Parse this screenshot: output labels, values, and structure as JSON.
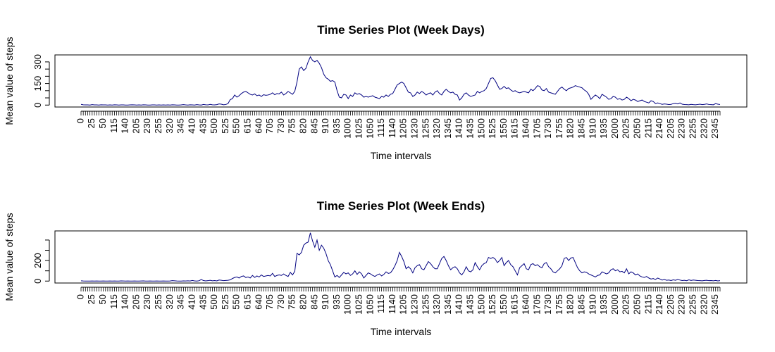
{
  "chart_data": [
    {
      "type": "line",
      "title": "Time Series Plot (Week Days)",
      "x_label": "Time intervals",
      "y_label": "Mean value of steps",
      "color": "#000080",
      "categories": [
        "0",
        null,
        null,
        null,
        null,
        "25",
        null,
        null,
        null,
        null,
        "50",
        null,
        null,
        null,
        null,
        "115",
        null,
        null,
        null,
        null,
        "140",
        null,
        null,
        null,
        null,
        "205",
        null,
        null,
        null,
        null,
        "230",
        null,
        null,
        null,
        null,
        "255",
        null,
        null,
        null,
        null,
        "320",
        null,
        null,
        null,
        null,
        "345",
        null,
        null,
        null,
        null,
        "410",
        null,
        null,
        null,
        null,
        "435",
        null,
        null,
        null,
        null,
        "500",
        null,
        null,
        null,
        null,
        "525",
        null,
        null,
        null,
        null,
        "550",
        null,
        null,
        null,
        null,
        "615",
        null,
        null,
        null,
        null,
        "640",
        null,
        null,
        null,
        null,
        "705",
        null,
        null,
        null,
        null,
        "730",
        null,
        null,
        null,
        null,
        "755",
        null,
        null,
        null,
        null,
        "820",
        null,
        null,
        null,
        null,
        "845",
        null,
        null,
        null,
        null,
        "910",
        null,
        null,
        null,
        null,
        "935",
        null,
        null,
        null,
        null,
        "1000",
        null,
        null,
        null,
        null,
        "1025",
        null,
        null,
        null,
        null,
        "1050",
        null,
        null,
        null,
        null,
        "1115",
        null,
        null,
        null,
        null,
        "1140",
        null,
        null,
        null,
        null,
        "1205",
        null,
        null,
        null,
        null,
        "1230",
        null,
        null,
        null,
        null,
        "1255",
        null,
        null,
        null,
        null,
        "1320",
        null,
        null,
        null,
        null,
        "1345",
        null,
        null,
        null,
        null,
        "1410",
        null,
        null,
        null,
        null,
        "1435",
        null,
        null,
        null,
        null,
        "1500",
        null,
        null,
        null,
        null,
        "1525",
        null,
        null,
        null,
        null,
        "1550",
        null,
        null,
        null,
        null,
        "1615",
        null,
        null,
        null,
        null,
        "1640",
        null,
        null,
        null,
        null,
        "1705",
        null,
        null,
        null,
        null,
        "1730",
        null,
        null,
        null,
        null,
        "1755",
        null,
        null,
        null,
        null,
        "1820",
        null,
        null,
        null,
        null,
        "1845",
        null,
        null,
        null,
        null,
        "1910",
        null,
        null,
        null,
        null,
        "1935",
        null,
        null,
        null,
        null,
        "2000",
        null,
        null,
        null,
        null,
        "2025",
        null,
        null,
        null,
        null,
        "2050",
        null,
        null,
        null,
        null,
        "2115",
        null,
        null,
        null,
        null,
        "2140",
        null,
        null,
        null,
        null,
        "2205",
        null,
        null,
        null,
        null,
        "2230",
        null,
        null,
        null,
        null,
        "2255",
        null,
        null,
        null,
        null,
        "2320",
        null,
        null,
        null,
        null,
        "2345",
        null,
        null
      ],
      "values": [
        5,
        2,
        1,
        1,
        0,
        3,
        1,
        1,
        0,
        2,
        1,
        1,
        0,
        1,
        0,
        2,
        1,
        0,
        1,
        1,
        0,
        0,
        1,
        2,
        1,
        0,
        1,
        0,
        2,
        1,
        0,
        0,
        1,
        1,
        0,
        1,
        0,
        1,
        0,
        1,
        0,
        2,
        1,
        0,
        0,
        1,
        3,
        1,
        0,
        2,
        1,
        0,
        3,
        1,
        0,
        4,
        2,
        1,
        5,
        2,
        1,
        3,
        8,
        6,
        2,
        4,
        10,
        38,
        45,
        70,
        55,
        65,
        80,
        90,
        95,
        85,
        75,
        70,
        78,
        65,
        70,
        60,
        72,
        68,
        70,
        75,
        85,
        72,
        80,
        78,
        90,
        70,
        80,
        95,
        85,
        75,
        95,
        160,
        250,
        265,
        240,
        255,
        300,
        335,
        310,
        300,
        310,
        290,
        260,
        215,
        190,
        180,
        165,
        170,
        160,
        100,
        55,
        50,
        75,
        70,
        45,
        70,
        60,
        85,
        75,
        80,
        70,
        55,
        60,
        55,
        60,
        65,
        55,
        50,
        45,
        60,
        55,
        70,
        60,
        75,
        80,
        110,
        140,
        150,
        160,
        150,
        120,
        90,
        85,
        60,
        70,
        90,
        80,
        95,
        85,
        70,
        80,
        85,
        70,
        90,
        100,
        80,
        70,
        95,
        110,
        95,
        85,
        90,
        75,
        70,
        35,
        50,
        75,
        85,
        70,
        60,
        65,
        70,
        95,
        85,
        95,
        100,
        115,
        150,
        185,
        190,
        170,
        140,
        110,
        115,
        130,
        115,
        120,
        105,
        95,
        100,
        90,
        85,
        90,
        95,
        90,
        85,
        110,
        100,
        115,
        135,
        130,
        105,
        100,
        115,
        90,
        85,
        80,
        75,
        95,
        115,
        125,
        110,
        100,
        115,
        120,
        125,
        135,
        130,
        125,
        120,
        105,
        95,
        75,
        40,
        55,
        70,
        60,
        45,
        75,
        65,
        55,
        40,
        45,
        60,
        55,
        40,
        45,
        35,
        40,
        55,
        45,
        30,
        40,
        35,
        25,
        30,
        35,
        25,
        20,
        15,
        30,
        25,
        10,
        15,
        10,
        5,
        8,
        6,
        4,
        5,
        10,
        12,
        8,
        15,
        6,
        4,
        3,
        2,
        5,
        3,
        2,
        4,
        6,
        3,
        5,
        8,
        4,
        3,
        2,
        10,
        6,
        4
      ],
      "ylim": [
        -13.4,
        348.4
      ],
      "yticks": [
        0,
        50,
        100,
        150,
        200,
        250,
        300
      ]
    },
    {
      "type": "line",
      "title": "Time Series Plot (Week Ends)",
      "x_label": "Time intervals",
      "y_label": "Mean value of steps",
      "color": "#000080",
      "categories": [
        "0",
        null,
        null,
        null,
        null,
        "25",
        null,
        null,
        null,
        null,
        "50",
        null,
        null,
        null,
        null,
        "115",
        null,
        null,
        null,
        null,
        "140",
        null,
        null,
        null,
        null,
        "205",
        null,
        null,
        null,
        null,
        "230",
        null,
        null,
        null,
        null,
        "255",
        null,
        null,
        null,
        null,
        "320",
        null,
        null,
        null,
        null,
        "345",
        null,
        null,
        null,
        null,
        "410",
        null,
        null,
        null,
        null,
        "435",
        null,
        null,
        null,
        null,
        "500",
        null,
        null,
        null,
        null,
        "525",
        null,
        null,
        null,
        null,
        "550",
        null,
        null,
        null,
        null,
        "615",
        null,
        null,
        null,
        null,
        "640",
        null,
        null,
        null,
        null,
        "705",
        null,
        null,
        null,
        null,
        "730",
        null,
        null,
        null,
        null,
        "755",
        null,
        null,
        null,
        null,
        "820",
        null,
        null,
        null,
        null,
        "845",
        null,
        null,
        null,
        null,
        "910",
        null,
        null,
        null,
        null,
        "935",
        null,
        null,
        null,
        null,
        "1000",
        null,
        null,
        null,
        null,
        "1025",
        null,
        null,
        null,
        null,
        "1050",
        null,
        null,
        null,
        null,
        "1115",
        null,
        null,
        null,
        null,
        "1140",
        null,
        null,
        null,
        null,
        "1205",
        null,
        null,
        null,
        null,
        "1230",
        null,
        null,
        null,
        null,
        "1255",
        null,
        null,
        null,
        null,
        "1320",
        null,
        null,
        null,
        null,
        "1345",
        null,
        null,
        null,
        null,
        "1410",
        null,
        null,
        null,
        null,
        "1435",
        null,
        null,
        null,
        null,
        "1500",
        null,
        null,
        null,
        null,
        "1525",
        null,
        null,
        null,
        null,
        "1550",
        null,
        null,
        null,
        null,
        "1615",
        null,
        null,
        null,
        null,
        "1640",
        null,
        null,
        null,
        null,
        "1705",
        null,
        null,
        null,
        null,
        "1730",
        null,
        null,
        null,
        null,
        "1755",
        null,
        null,
        null,
        null,
        "1820",
        null,
        null,
        null,
        null,
        "1845",
        null,
        null,
        null,
        null,
        "1910",
        null,
        null,
        null,
        null,
        "1935",
        null,
        null,
        null,
        null,
        "2000",
        null,
        null,
        null,
        null,
        "2025",
        null,
        null,
        null,
        null,
        "2050",
        null,
        null,
        null,
        null,
        "2115",
        null,
        null,
        null,
        null,
        "2140",
        null,
        null,
        null,
        null,
        "2205",
        null,
        null,
        null,
        null,
        "2230",
        null,
        null,
        null,
        null,
        "2255",
        null,
        null,
        null,
        null,
        "2320",
        null,
        null,
        null,
        null,
        "2345",
        null,
        null
      ],
      "values": [
        3,
        1,
        0,
        0,
        0,
        1,
        0,
        1,
        0,
        0,
        1,
        0,
        0,
        1,
        0,
        1,
        0,
        0,
        2,
        1,
        0,
        1,
        0,
        0,
        1,
        0,
        0,
        1,
        2,
        0,
        0,
        1,
        0,
        0,
        1,
        0,
        0,
        1,
        0,
        0,
        1,
        4,
        3,
        1,
        0,
        0,
        2,
        1,
        3,
        1,
        6,
        2,
        0,
        3,
        15,
        5,
        2,
        4,
        8,
        3,
        5,
        2,
        10,
        8,
        4,
        6,
        8,
        12,
        25,
        35,
        40,
        30,
        45,
        50,
        35,
        40,
        30,
        55,
        35,
        50,
        40,
        60,
        45,
        50,
        55,
        50,
        75,
        45,
        55,
        60,
        55,
        70,
        55,
        45,
        85,
        60,
        95,
        270,
        255,
        280,
        350,
        370,
        380,
        470,
        390,
        330,
        400,
        300,
        350,
        320,
        270,
        200,
        160,
        100,
        40,
        55,
        35,
        60,
        85,
        70,
        80,
        55,
        70,
        100,
        65,
        90,
        70,
        30,
        55,
        80,
        70,
        55,
        45,
        60,
        70,
        50,
        65,
        90,
        75,
        80,
        110,
        150,
        200,
        280,
        240,
        190,
        120,
        140,
        120,
        80,
        130,
        150,
        160,
        120,
        110,
        150,
        190,
        170,
        140,
        120,
        120,
        170,
        220,
        240,
        200,
        150,
        110,
        130,
        140,
        120,
        80,
        60,
        90,
        140,
        100,
        90,
        110,
        180,
        140,
        110,
        150,
        170,
        180,
        230,
        220,
        230,
        215,
        180,
        200,
        230,
        150,
        180,
        200,
        160,
        140,
        100,
        60,
        130,
        150,
        170,
        120,
        110,
        160,
        170,
        150,
        160,
        140,
        130,
        170,
        180,
        140,
        120,
        90,
        80,
        100,
        120,
        150,
        220,
        230,
        200,
        225,
        230,
        180,
        130,
        100,
        80,
        90,
        85,
        70,
        60,
        50,
        40,
        55,
        60,
        90,
        80,
        70,
        80,
        110,
        120,
        100,
        110,
        90,
        95,
        80,
        120,
        70,
        90,
        80,
        60,
        70,
        50,
        40,
        35,
        45,
        30,
        20,
        25,
        15,
        30,
        20,
        10,
        15,
        8,
        10,
        5,
        12,
        8,
        15,
        10,
        5,
        8,
        4,
        12,
        6,
        10,
        8,
        5,
        4,
        3,
        6,
        8,
        4,
        5,
        3,
        6,
        2,
        4
      ],
      "ylim": [
        -18.8,
        488.8
      ],
      "yticks": [
        0,
        100,
        200,
        300,
        400
      ]
    }
  ]
}
